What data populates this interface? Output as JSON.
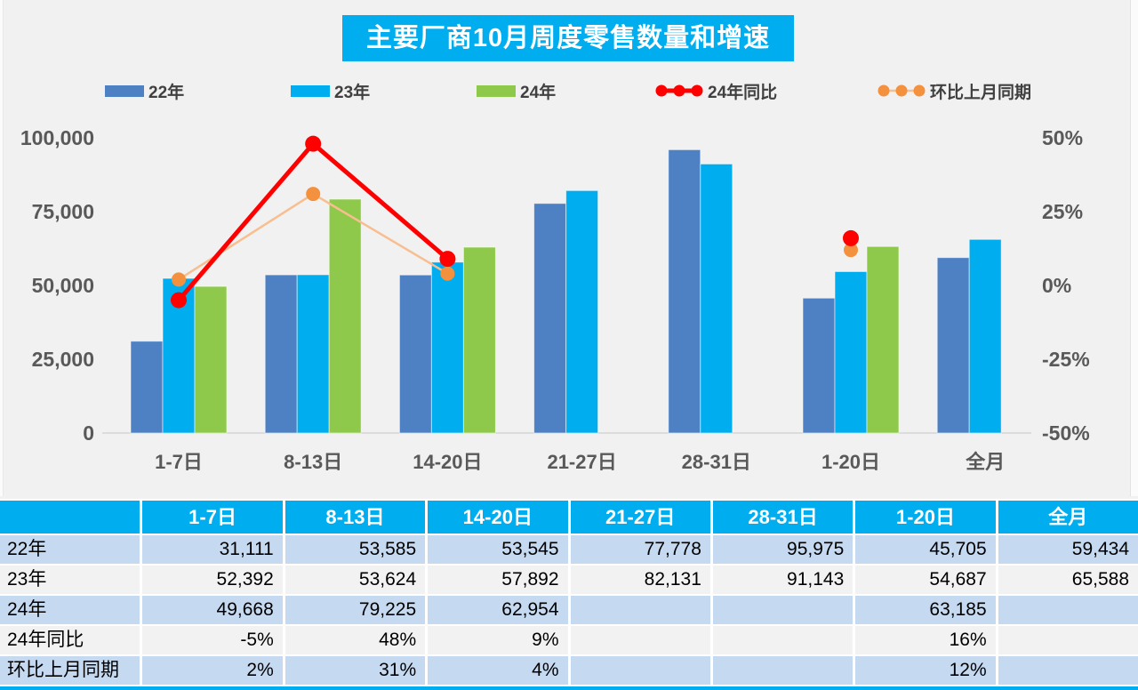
{
  "page": {
    "title": "主要厂商10月周度零售数量和增速"
  },
  "colors": {
    "title_bg": "#00AEEF",
    "bar_22": "#4D81C4",
    "bar_23": "#00AEEF",
    "bar_24": "#8EC94B",
    "line_yoy": "#FE0000",
    "line_mom": "#F9BE90",
    "marker_mom": "#F4913E",
    "axis_text": "#595959",
    "axis_line": "#D5D5D5",
    "legend_text": "#404040",
    "table_header_bg": "#00AEEF",
    "row_blue": "#C5D9F1",
    "row_gray": "#F2F2F2"
  },
  "legend": [
    {
      "key": "y22",
      "label": "22年",
      "type": "bar",
      "color": "#4D81C4"
    },
    {
      "key": "y23",
      "label": "23年",
      "type": "bar",
      "color": "#00AEEF"
    },
    {
      "key": "y24",
      "label": "24年",
      "type": "bar",
      "color": "#8EC94B"
    },
    {
      "key": "yoy",
      "label": "24年同比",
      "type": "line",
      "color": "#FE0000",
      "marker": "#FE0000"
    },
    {
      "key": "mom",
      "label": "环比上月同期",
      "type": "line",
      "color": "#F9BE90",
      "marker": "#F4913E"
    }
  ],
  "chart_data": {
    "type": "combo-bar-line",
    "title": "主要厂商10月周度零售数量和增速",
    "categories": [
      "1-7日",
      "8-13日",
      "14-20日",
      "21-27日",
      "28-31日",
      "1-20日",
      "全月"
    ],
    "left_axis": {
      "ticks": [
        "100,000",
        "75,000",
        "50,000",
        "25,000",
        "0"
      ],
      "min": 0,
      "max": 100000
    },
    "right_axis": {
      "ticks": [
        "50%",
        "25%",
        "0%",
        "-25%",
        "-50%"
      ],
      "min": -50,
      "max": 50
    },
    "grid": "off",
    "legend_position": "top",
    "bar_series": [
      {
        "key": "y22",
        "name": "22年",
        "color": "#4D81C4",
        "values": [
          31111,
          53585,
          53545,
          77778,
          95975,
          45705,
          59434
        ]
      },
      {
        "key": "y23",
        "name": "23年",
        "color": "#00AEEF",
        "values": [
          52392,
          53624,
          57892,
          82131,
          91143,
          54687,
          65588
        ]
      },
      {
        "key": "y24",
        "name": "24年",
        "color": "#8EC94B",
        "values": [
          49668,
          79225,
          62954,
          null,
          null,
          63185,
          null
        ]
      }
    ],
    "line_series": [
      {
        "key": "yoy",
        "name": "24年同比",
        "color": "#FE0000",
        "marker": "#FE0000",
        "values_pct": [
          -5,
          48,
          9,
          null,
          null,
          16,
          null
        ]
      },
      {
        "key": "mom",
        "name": "环比上月同期",
        "color": "#F9BE90",
        "marker": "#F4913E",
        "values_pct": [
          2,
          31,
          4,
          null,
          null,
          12,
          null
        ]
      }
    ]
  },
  "table": {
    "header": [
      "",
      "1-7日",
      "8-13日",
      "14-20日",
      "21-27日",
      "28-31日",
      "1-20日",
      "全月"
    ],
    "rows": [
      {
        "label": "22年",
        "values": [
          "31,111",
          "53,585",
          "53,545",
          "77,778",
          "95,975",
          "45,705",
          "59,434"
        ]
      },
      {
        "label": "23年",
        "values": [
          "52,392",
          "53,624",
          "57,892",
          "82,131",
          "91,143",
          "54,687",
          "65,588"
        ]
      },
      {
        "label": "24年",
        "values": [
          "49,668",
          "79,225",
          "62,954",
          "",
          "",
          "63,185",
          ""
        ]
      },
      {
        "label": "24年同比",
        "values": [
          "-5%",
          "48%",
          "9%",
          "",
          "",
          "16%",
          ""
        ]
      },
      {
        "label": "环比上月同期",
        "values": [
          "2%",
          "31%",
          "4%",
          "",
          "",
          "12%",
          ""
        ]
      }
    ]
  }
}
